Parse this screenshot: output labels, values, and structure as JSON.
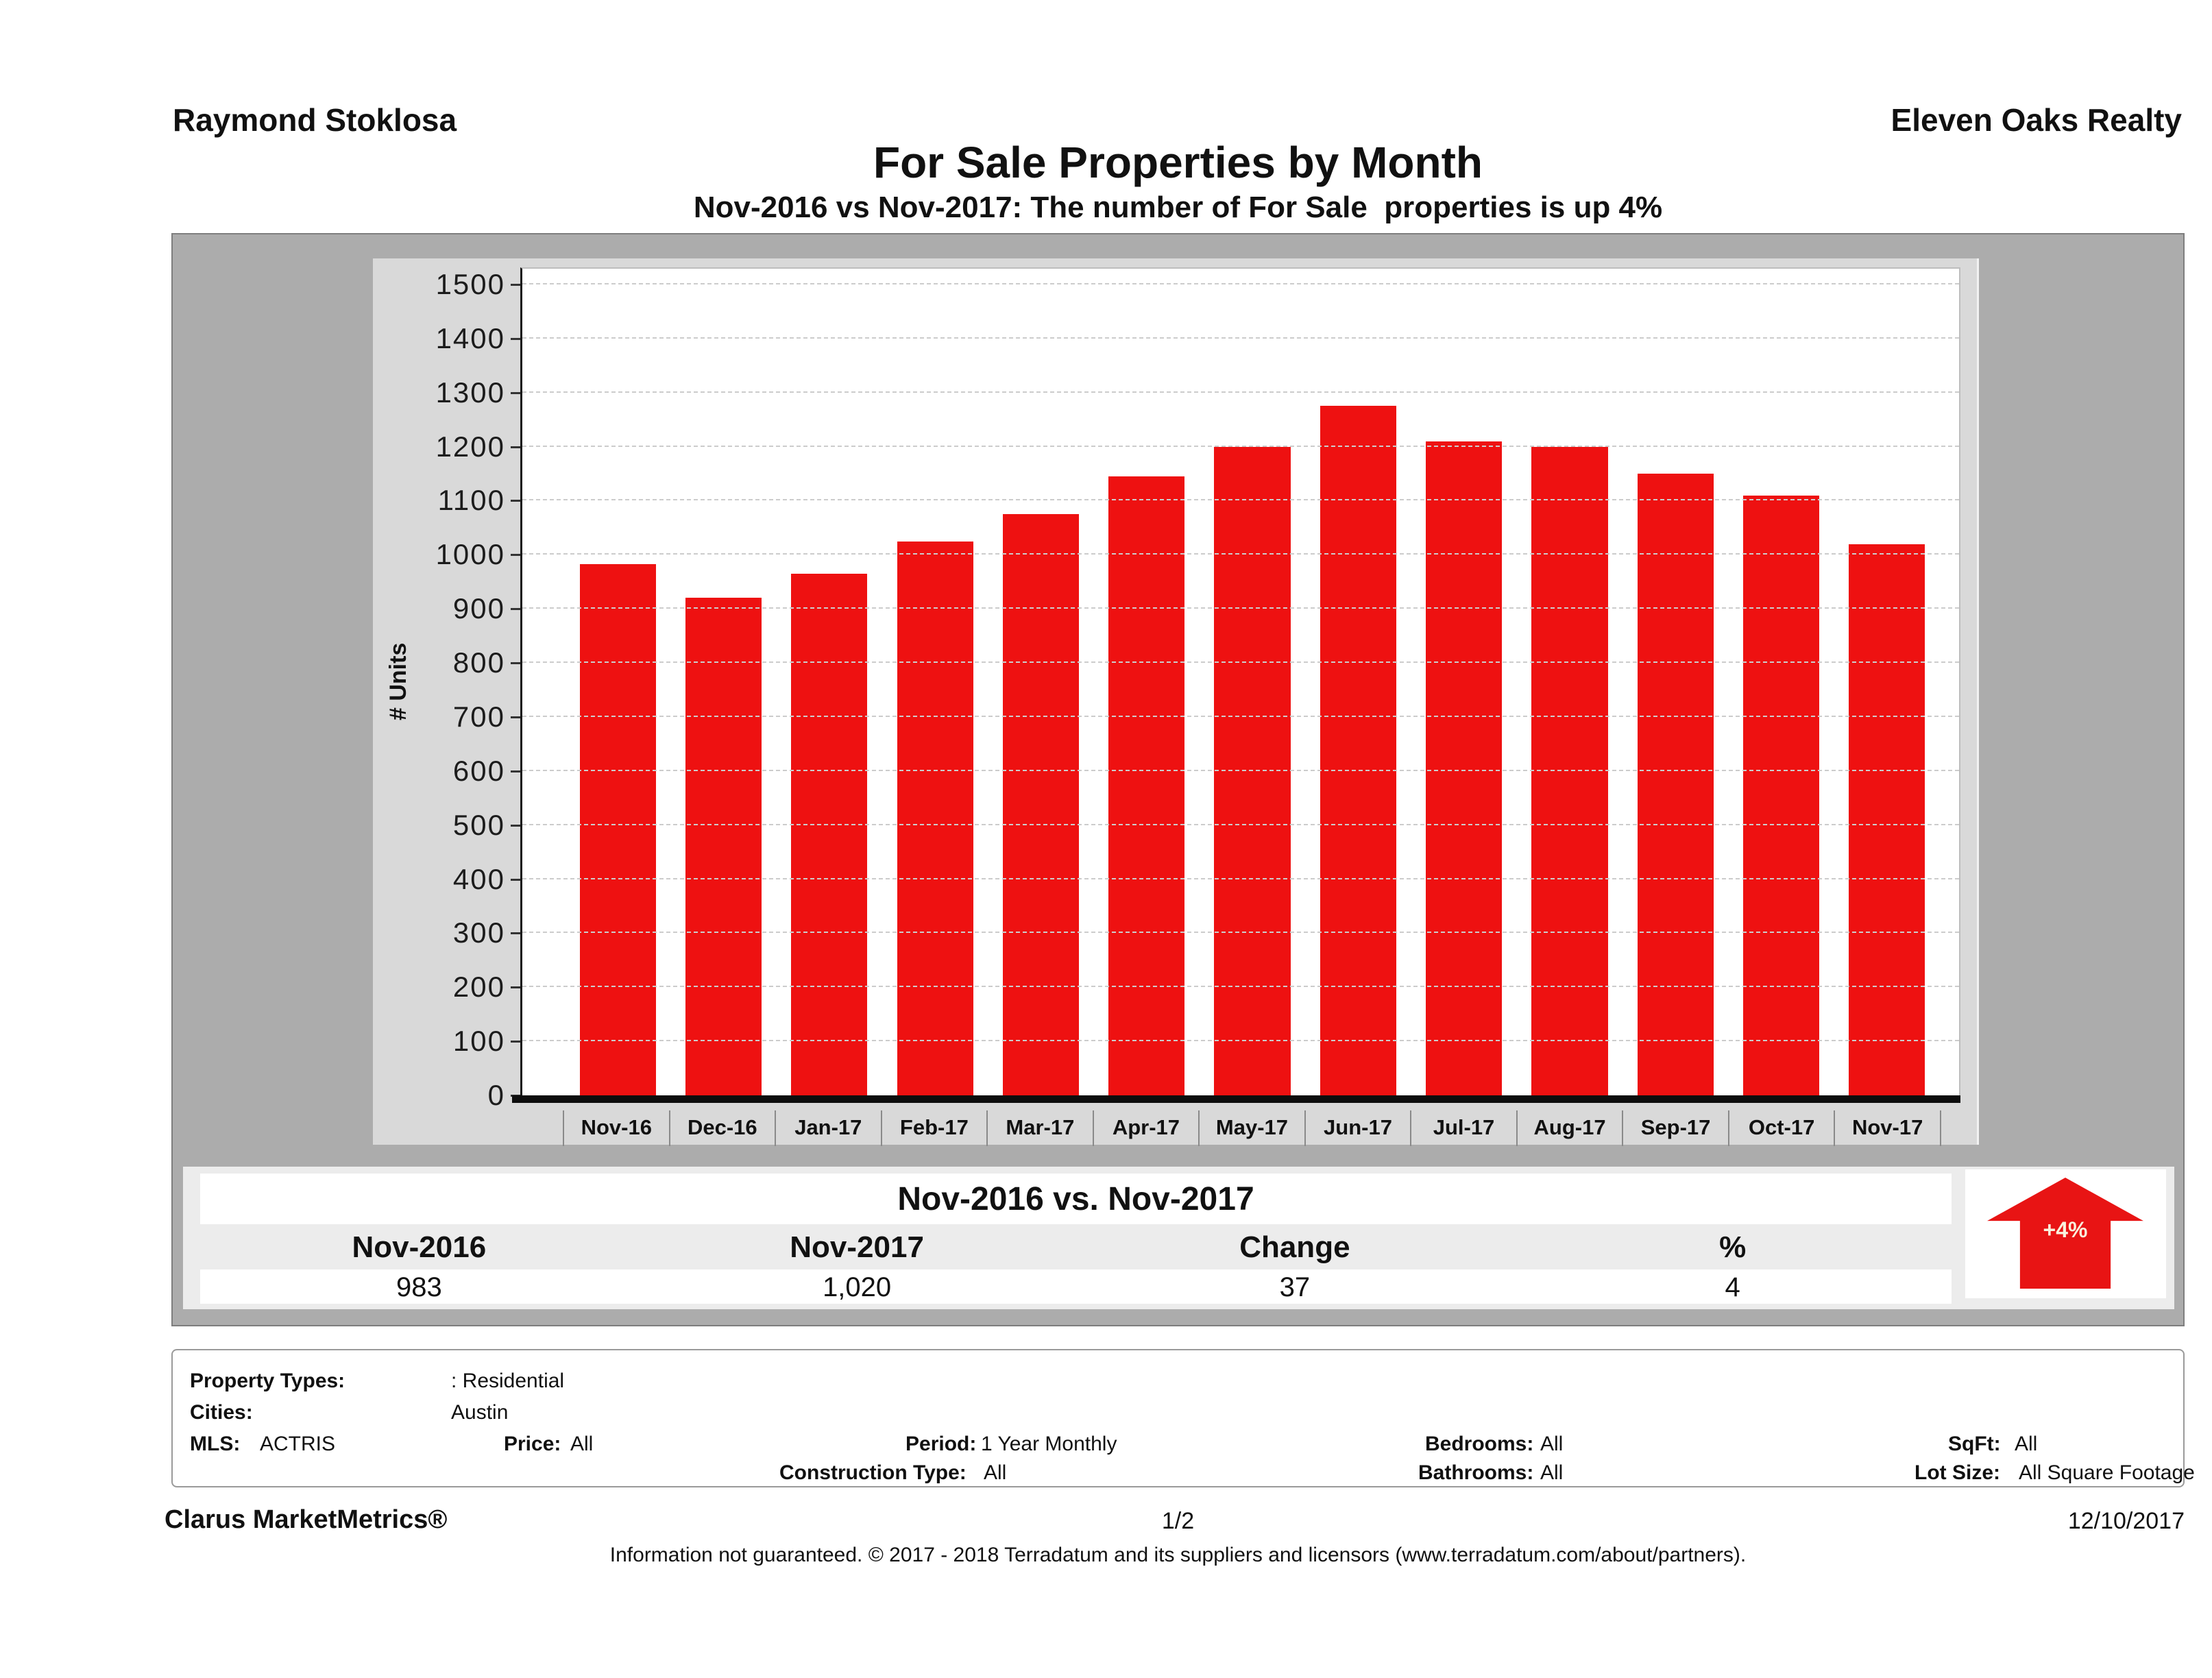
{
  "header": {
    "agent": "Raymond Stoklosa",
    "company": "Eleven Oaks Realty",
    "title": "For Sale Properties by Month",
    "subtitle": "Nov-2016 vs Nov-2017: The number of For Sale  properties is up 4%"
  },
  "chart_data": {
    "type": "bar",
    "title": "For Sale Properties by Month",
    "xlabel": "",
    "ylabel": "# Units",
    "ylim": [
      0,
      1500
    ],
    "ytick_step": 100,
    "grid": true,
    "legend_position": "none",
    "bar_color": "#ee1111",
    "categories": [
      "Nov-16",
      "Dec-16",
      "Jan-17",
      "Feb-17",
      "Mar-17",
      "Apr-17",
      "May-17",
      "Jun-17",
      "Jul-17",
      "Aug-17",
      "Sep-17",
      "Oct-17",
      "Nov-17"
    ],
    "values": [
      983,
      920,
      965,
      1025,
      1075,
      1145,
      1200,
      1275,
      1210,
      1200,
      1150,
      1110,
      1020
    ]
  },
  "summary": {
    "title": "Nov-2016 vs. Nov-2017",
    "columns": [
      "Nov-2016",
      "Nov-2017",
      "Change",
      "%"
    ],
    "values": [
      "983",
      "1,020",
      "37",
      "4"
    ],
    "arrow_label": "+4%",
    "arrow_color": "#e81414"
  },
  "parameters": {
    "property_types_label": "Property Types:",
    "property_types": ": Residential",
    "cities_label": "Cities:",
    "cities": "Austin",
    "mls_label": "MLS:",
    "mls": "ACTRIS",
    "price_label": "Price:",
    "price": "All",
    "period_label": "Period:",
    "period": "1 Year Monthly",
    "bedrooms_label": "Bedrooms:",
    "bedrooms": "All",
    "sqft_label": "SqFt:",
    "sqft": "All",
    "construction_label": "Construction Type:",
    "construction": "All",
    "bathrooms_label": "Bathrooms:",
    "bathrooms": "All",
    "lot_label": "Lot Size:",
    "lot": "All Square Footage"
  },
  "footer": {
    "brand": "Clarus MarketMetrics®",
    "page": "1/2",
    "date": "12/10/2017",
    "disclaimer": "Information not guaranteed. © 2017 - 2018 Terradatum and its suppliers and licensors (www.terradatum.com/about/partners)."
  }
}
